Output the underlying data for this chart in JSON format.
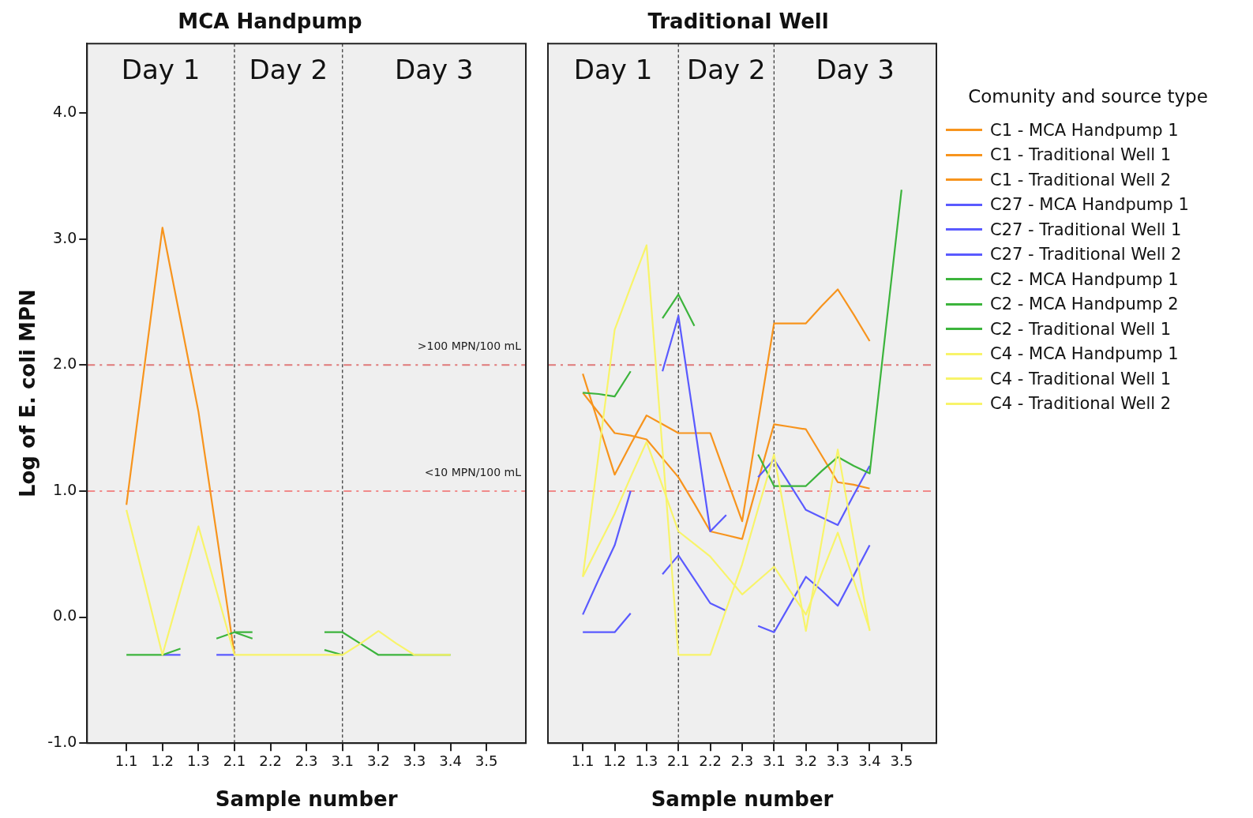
{
  "chart_data": [
    {
      "type": "line",
      "title": "MCA Handpump",
      "xlabel": "Sample number",
      "ylabel": "Log of E. coli MPN",
      "categories": [
        "1.1",
        null,
        "1.2",
        null,
        "1.3",
        null,
        "2.1",
        null,
        "2.2",
        null,
        "2.3",
        null,
        "3.1",
        null,
        "3.2",
        null,
        "3.3",
        null,
        "3.4",
        null,
        "3.5"
      ],
      "ylim": [
        -1,
        4.55
      ],
      "yticks": [
        {
          "value": -1,
          "label": "-1.0"
        },
        {
          "value": 0,
          "label": "0.0"
        },
        {
          "value": 1,
          "label": "1.0"
        },
        {
          "value": 2,
          "label": "2.0"
        },
        {
          "value": 3,
          "label": "3.0"
        },
        {
          "value": 4,
          "label": "4.0"
        }
      ],
      "grid": false,
      "legend": "right",
      "marker": "none",
      "line_style": "solid",
      "annotations": [
        "Day 1",
        "Day 2",
        "Day 3"
      ],
      "ref_lines": [
        {
          "axis": "x",
          "value": "2.1",
          "color": "#404040",
          "line_style": "dashed"
        },
        {
          "axis": "x",
          "value": "3.1",
          "color": "#404040",
          "line_style": "dashed"
        },
        {
          "axis": "y",
          "value": 2,
          "label": ">100 MPN/100 mL",
          "color": "#e07a7a",
          "line_style": "dashed"
        },
        {
          "axis": "y",
          "value": 1,
          "label": "<10 MPN/100 mL",
          "color": "#f08a8a",
          "line_style": "dashed"
        }
      ],
      "series": [
        {
          "name": "C1 - MCA Handpump 1",
          "color": "#f7941d",
          "values": [
            0.89,
            1.99,
            3.09,
            2.36,
            1.63,
            0.67,
            -0.3,
            null,
            null,
            null,
            null,
            null,
            null,
            null,
            null,
            null,
            null,
            null,
            null,
            null,
            null
          ]
        },
        {
          "name": "C27 - MCA Handpump 1",
          "color": "#5a5aff",
          "values": [
            null,
            null,
            -0.3,
            -0.3,
            null,
            -0.3,
            -0.3,
            null,
            null,
            null,
            null,
            null,
            null,
            null,
            null,
            null,
            null,
            null,
            null,
            null,
            null
          ]
        },
        {
          "name": "C2 - MCA Handpump 1",
          "color": "#3cb43c",
          "values": [
            -0.3,
            -0.3,
            -0.3,
            -0.25,
            null,
            -0.17,
            -0.12,
            -0.12,
            null,
            null,
            null,
            -0.12,
            -0.12,
            -0.21,
            -0.3,
            -0.3,
            -0.3,
            -0.3,
            -0.3,
            null,
            null
          ]
        },
        {
          "name": "C2 - MCA Handpump 2",
          "color": "#3cb43c",
          "values": [
            null,
            null,
            null,
            null,
            null,
            null,
            -0.12,
            -0.17,
            null,
            null,
            null,
            -0.26,
            -0.3,
            null,
            null,
            null,
            null,
            null,
            null,
            null,
            null
          ]
        },
        {
          "name": "C4 - MCA Handpump 1",
          "color": "#f8f46a",
          "values": [
            0.85,
            0.28,
            -0.3,
            0.21,
            0.72,
            0.21,
            -0.3,
            -0.3,
            -0.3,
            -0.3,
            -0.3,
            -0.3,
            -0.3,
            -0.21,
            -0.11,
            -0.21,
            -0.3,
            -0.3,
            -0.3,
            null,
            null
          ]
        }
      ]
    },
    {
      "type": "line",
      "title": "Traditional Well",
      "xlabel": "Sample number",
      "legend_title": "Comunity and source type",
      "categories": [
        "1.1",
        null,
        "1.2",
        null,
        "1.3",
        null,
        "2.1",
        null,
        "2.2",
        null,
        "2.3",
        null,
        "3.1",
        null,
        "3.2",
        null,
        "3.3",
        null,
        "3.4",
        null,
        "3.5"
      ],
      "ylim": [
        -1,
        4.55
      ],
      "tick_labels": "x",
      "grid": false,
      "legend": "right",
      "marker": "none",
      "line_style": "solid",
      "annotations": [
        "Day 1",
        "Day 2",
        "Day 3"
      ],
      "ref_lines": [
        {
          "axis": "x",
          "value": "2.1",
          "color": "#404040",
          "line_style": "dashed"
        },
        {
          "axis": "x",
          "value": "3.1",
          "color": "#404040",
          "line_style": "dashed"
        },
        {
          "axis": "y",
          "value": 2,
          "color": "#e07a7a",
          "line_style": "dashed"
        },
        {
          "axis": "y",
          "value": 1,
          "color": "#f08a8a",
          "line_style": "dashed"
        }
      ],
      "series": [
        {
          "name": "C1 - Traditional Well 1",
          "color": "#f7941d",
          "values": [
            1.93,
            1.53,
            1.13,
            1.37,
            1.6,
            1.53,
            1.46,
            1.46,
            1.46,
            1.11,
            0.76,
            1.55,
            2.33,
            2.33,
            2.33,
            2.47,
            2.6,
            2.4,
            2.19,
            null,
            null
          ]
        },
        {
          "name": "C1 - Traditional Well 2",
          "color": "#f7941d",
          "values": [
            1.78,
            1.62,
            1.46,
            1.44,
            1.41,
            1.26,
            1.11,
            0.9,
            0.68,
            0.65,
            0.62,
            1.08,
            1.53,
            1.51,
            1.49,
            1.28,
            1.07,
            1.05,
            1.02,
            null,
            null
          ]
        },
        {
          "name": "C27 - Traditional Well 1",
          "color": "#5a5aff",
          "values": [
            0.02,
            0.3,
            0.57,
            1.0,
            null,
            1.95,
            2.39,
            1.54,
            0.68,
            0.81,
            null,
            1.11,
            1.25,
            1.05,
            0.85,
            0.79,
            0.73,
            0.97,
            1.2,
            null,
            null
          ]
        },
        {
          "name": "C27 - Traditional Well 2",
          "color": "#5a5aff",
          "values": [
            -0.12,
            -0.12,
            -0.12,
            0.03,
            null,
            0.34,
            0.49,
            0.3,
            0.11,
            0.05,
            null,
            -0.07,
            -0.12,
            0.1,
            0.32,
            0.21,
            0.09,
            0.33,
            0.57,
            null,
            null
          ]
        },
        {
          "name": "C2 - Traditional Well 1",
          "color": "#3cb43c",
          "values": [
            1.78,
            1.77,
            1.75,
            1.95,
            null,
            2.37,
            2.56,
            2.31,
            null,
            null,
            null,
            1.29,
            1.04,
            1.04,
            1.04,
            1.16,
            1.27,
            1.2,
            1.14,
            2.27,
            3.39
          ]
        },
        {
          "name": "C4 - Traditional Well 1",
          "color": "#f8f46a",
          "values": [
            0.32,
            1.3,
            2.28,
            2.62,
            2.95,
            1.33,
            -0.3,
            -0.3,
            -0.3,
            0.06,
            0.42,
            0.86,
            1.29,
            0.59,
            -0.11,
            0.61,
            1.33,
            0.61,
            -0.11,
            null,
            null
          ]
        },
        {
          "name": "C4 - Traditional Well 2",
          "color": "#f8f46a",
          "values": [
            0.32,
            0.57,
            0.82,
            1.11,
            1.39,
            1.04,
            0.68,
            0.58,
            0.48,
            0.33,
            0.18,
            0.29,
            0.4,
            0.21,
            0.02,
            0.35,
            0.67,
            0.29,
            -0.1,
            null,
            null
          ]
        }
      ]
    }
  ]
}
